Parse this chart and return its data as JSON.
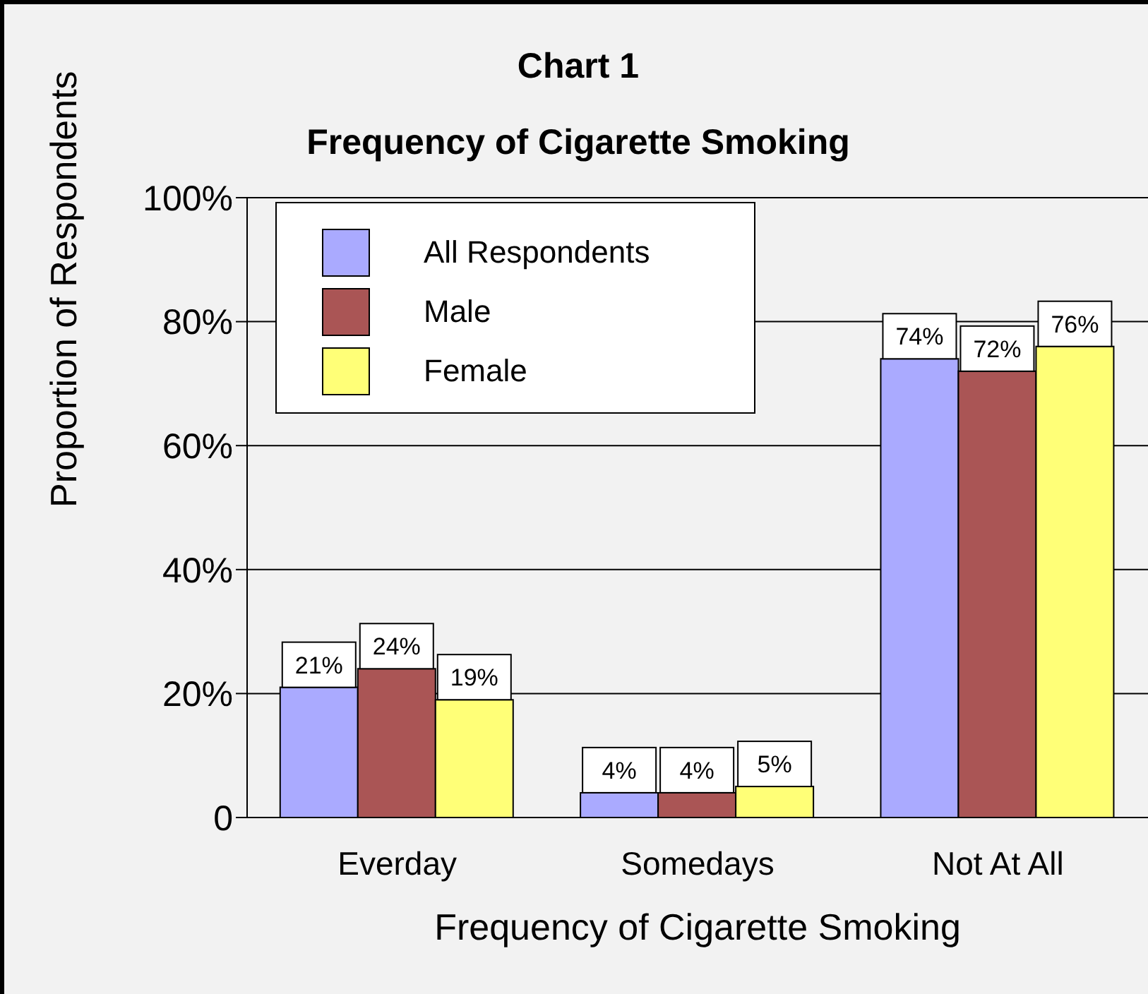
{
  "chart_data": {
    "type": "bar",
    "title": "Chart 1",
    "subtitle": "Frequency of Cigarette Smoking",
    "xlabel": "Frequency of Cigarette Smoking",
    "ylabel": "Proportion of Respondents",
    "categories": [
      "Everday",
      "Somedays",
      "Not At All"
    ],
    "series": [
      {
        "name": "All Respondents",
        "color": "#aaaaff",
        "values": [
          21,
          4,
          74
        ],
        "value_labels": [
          "21%",
          "4%",
          "74%"
        ]
      },
      {
        "name": "Male",
        "color": "#aa5555",
        "values": [
          24,
          4,
          72
        ],
        "value_labels": [
          "24%",
          "4%",
          "72%"
        ]
      },
      {
        "name": "Female",
        "color": "#ffff77",
        "values": [
          19,
          5,
          76
        ],
        "value_labels": [
          "19%",
          "5%",
          "76%"
        ]
      }
    ],
    "ylim": [
      0,
      100
    ],
    "yticks": [
      {
        "value": 0,
        "label": "0"
      },
      {
        "value": 20,
        "label": "20%"
      },
      {
        "value": 40,
        "label": "40%"
      },
      {
        "value": 60,
        "label": "60%"
      },
      {
        "value": 80,
        "label": "80%"
      },
      {
        "value": 100,
        "label": "100%"
      }
    ],
    "grid": "y",
    "legend": "top left"
  }
}
